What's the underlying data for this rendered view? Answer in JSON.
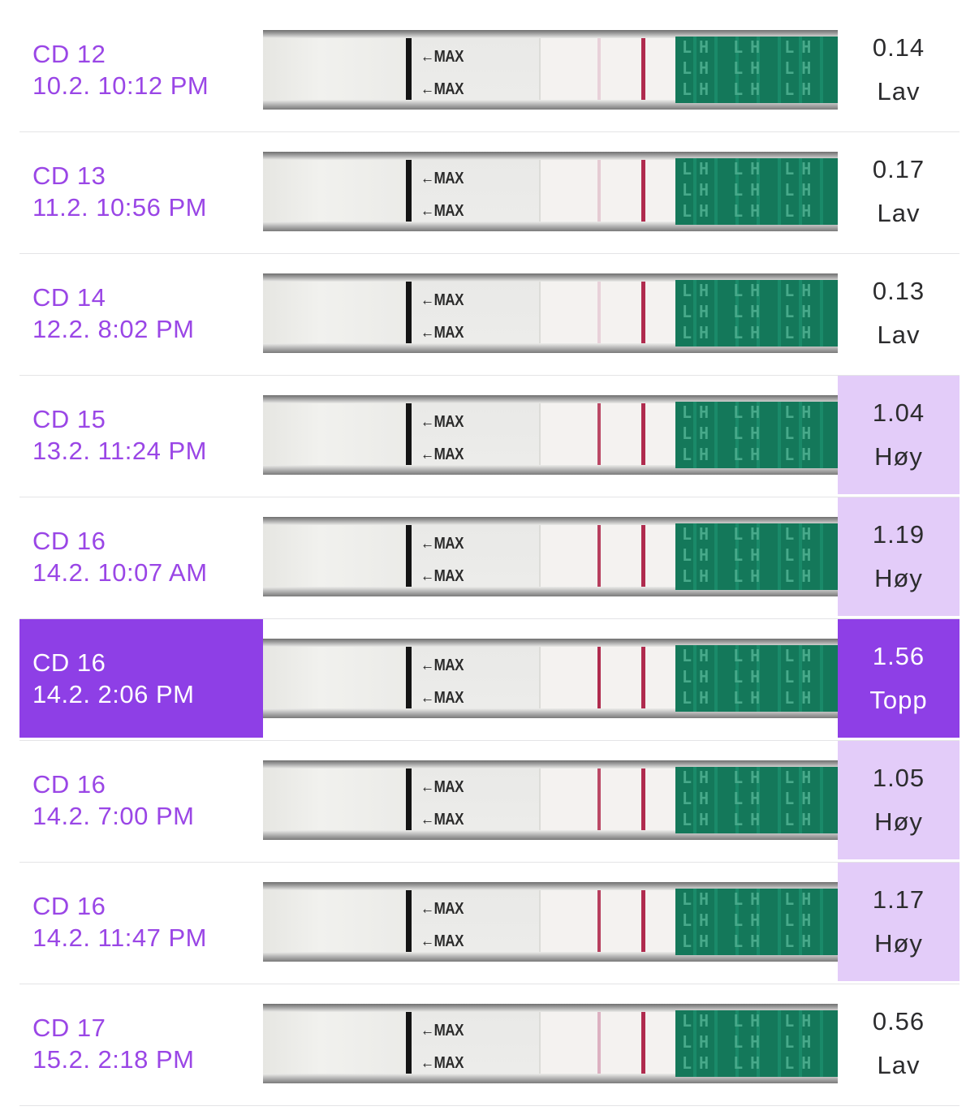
{
  "tests": [
    {
      "cycle_day": "CD 12",
      "datetime": "10.2. 10:12 PM",
      "value": "0.14",
      "level": "Lav",
      "state": "low",
      "test_line_intensity": 0.25
    },
    {
      "cycle_day": "CD 13",
      "datetime": "11.2. 10:56 PM",
      "value": "0.17",
      "level": "Lav",
      "state": "low",
      "test_line_intensity": 0.3
    },
    {
      "cycle_day": "CD 14",
      "datetime": "12.2. 8:02 PM",
      "value": "0.13",
      "level": "Lav",
      "state": "low",
      "test_line_intensity": 0.25
    },
    {
      "cycle_day": "CD 15",
      "datetime": "13.2. 11:24 PM",
      "value": "1.04",
      "level": "Høy",
      "state": "high",
      "test_line_intensity": 0.85
    },
    {
      "cycle_day": "CD 16",
      "datetime": "14.2. 10:07 AM",
      "value": "1.19",
      "level": "Høy",
      "state": "high",
      "test_line_intensity": 0.9
    },
    {
      "cycle_day": "CD 16",
      "datetime": "14.2. 2:06 PM",
      "value": "1.56",
      "level": "Topp",
      "state": "peak",
      "test_line_intensity": 1.0
    },
    {
      "cycle_day": "CD 16",
      "datetime": "14.2. 7:00 PM",
      "value": "1.05",
      "level": "Høy",
      "state": "high",
      "test_line_intensity": 0.85
    },
    {
      "cycle_day": "CD 16",
      "datetime": "14.2. 11:47 PM",
      "value": "1.17",
      "level": "Høy",
      "state": "high",
      "test_line_intensity": 0.9
    },
    {
      "cycle_day": "CD 17",
      "datetime": "15.2. 2:18 PM",
      "value": "0.56",
      "level": "Lav",
      "state": "low",
      "test_line_intensity": 0.5
    }
  ],
  "strip_text": {
    "max_label": "←MAX",
    "lh_label": "LH"
  },
  "colors": {
    "accent": "#8e3fe6",
    "label_text": "#9a46e6",
    "high_bg": "#e3ccf9",
    "control_line": "#b02b4e",
    "test_pad": "#14785a"
  }
}
